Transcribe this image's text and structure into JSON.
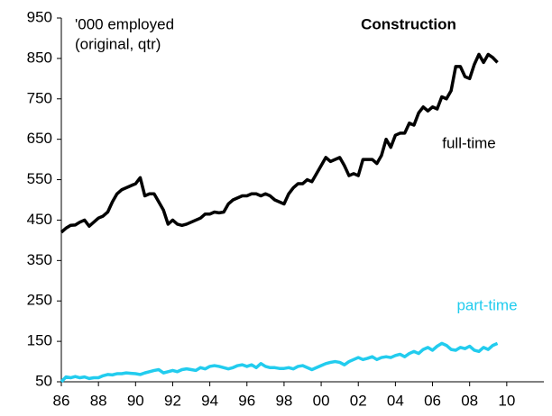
{
  "chart_data": {
    "type": "line",
    "title": "Construction",
    "subtitle": [
      "'000 employed",
      "(original, qtr)"
    ],
    "x": [
      1986,
      1986.25,
      1986.5,
      1986.75,
      1987,
      1987.25,
      1987.5,
      1987.75,
      1988,
      1988.25,
      1988.5,
      1988.75,
      1989,
      1989.25,
      1989.5,
      1989.75,
      1990,
      1990.25,
      1990.5,
      1990.75,
      1991,
      1991.25,
      1991.5,
      1991.75,
      1992,
      1992.25,
      1992.5,
      1992.75,
      1993,
      1993.25,
      1993.5,
      1993.75,
      1994,
      1994.25,
      1994.5,
      1994.75,
      1995,
      1995.25,
      1995.5,
      1995.75,
      1996,
      1996.25,
      1996.5,
      1996.75,
      1997,
      1997.25,
      1997.5,
      1997.75,
      1998,
      1998.25,
      1998.5,
      1998.75,
      1999,
      1999.25,
      1999.5,
      1999.75,
      2000,
      2000.25,
      2000.5,
      2000.75,
      2001,
      2001.25,
      2001.5,
      2001.75,
      2002,
      2002.25,
      2002.5,
      2002.75,
      2003,
      2003.25,
      2003.5,
      2003.75,
      2004,
      2004.25,
      2004.5,
      2004.75,
      2005,
      2005.25,
      2005.5,
      2005.75,
      2006,
      2006.25,
      2006.5,
      2006.75,
      2007,
      2007.25,
      2007.5,
      2007.75,
      2008,
      2008.25,
      2008.5,
      2008.75,
      2009,
      2009.25,
      2009.5
    ],
    "series": [
      {
        "name": "full-time",
        "color": "#000000",
        "values": [
          420,
          430,
          437,
          438,
          445,
          450,
          435,
          445,
          455,
          460,
          470,
          495,
          515,
          525,
          530,
          535,
          540,
          555,
          510,
          515,
          515,
          495,
          475,
          440,
          450,
          440,
          437,
          440,
          445,
          450,
          455,
          465,
          465,
          470,
          468,
          470,
          490,
          500,
          505,
          510,
          510,
          515,
          515,
          510,
          515,
          510,
          500,
          495,
          490,
          515,
          530,
          540,
          540,
          550,
          545,
          565,
          585,
          605,
          595,
          600,
          605,
          585,
          560,
          565,
          560,
          600,
          600,
          600,
          590,
          610,
          650,
          630,
          660,
          665,
          665,
          690,
          685,
          715,
          730,
          720,
          730,
          725,
          755,
          750,
          770,
          830,
          830,
          805,
          800,
          835,
          860,
          840,
          860,
          852,
          840
        ]
      },
      {
        "name": "part-time",
        "color": "#22ccee",
        "values": [
          50,
          62,
          60,
          63,
          60,
          62,
          58,
          60,
          60,
          65,
          68,
          67,
          70,
          70,
          72,
          71,
          70,
          68,
          72,
          75,
          78,
          80,
          72,
          75,
          78,
          75,
          80,
          82,
          80,
          78,
          85,
          82,
          88,
          90,
          88,
          85,
          82,
          85,
          90,
          92,
          88,
          92,
          85,
          95,
          88,
          85,
          85,
          83,
          83,
          85,
          82,
          88,
          90,
          85,
          80,
          85,
          90,
          95,
          98,
          100,
          98,
          92,
          100,
          105,
          110,
          105,
          108,
          112,
          105,
          110,
          112,
          110,
          115,
          118,
          112,
          120,
          125,
          120,
          130,
          135,
          128,
          138,
          145,
          140,
          130,
          128,
          135,
          132,
          138,
          128,
          125,
          135,
          130,
          140,
          145
        ]
      }
    ],
    "xlim": [
      1986,
      2012
    ],
    "xticks": [
      {
        "value": 1986,
        "label": "86"
      },
      {
        "value": 1988,
        "label": "88"
      },
      {
        "value": 1990,
        "label": "90"
      },
      {
        "value": 1992,
        "label": "92"
      },
      {
        "value": 1994,
        "label": "94"
      },
      {
        "value": 1996,
        "label": "96"
      },
      {
        "value": 1998,
        "label": "98"
      },
      {
        "value": 2000,
        "label": "00"
      },
      {
        "value": 2002,
        "label": "02"
      },
      {
        "value": 2004,
        "label": "04"
      },
      {
        "value": 2006,
        "label": "06"
      },
      {
        "value": 2008,
        "label": "08"
      },
      {
        "value": 2010,
        "label": "10"
      }
    ],
    "ylim": [
      50,
      950
    ],
    "yticks": [
      50,
      150,
      250,
      350,
      450,
      550,
      650,
      750,
      850,
      950
    ]
  }
}
